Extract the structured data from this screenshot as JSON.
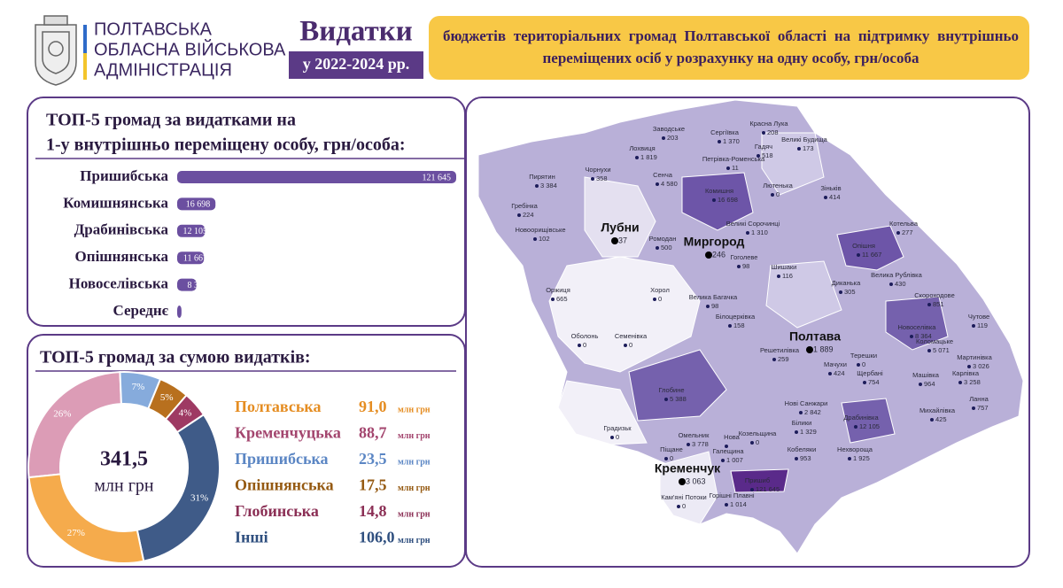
{
  "header": {
    "org": [
      "ПОЛТАВСЬКА",
      "ОБЛАСНА ВІЙСЬКОВА",
      "АДМІНІСТРАЦІЯ"
    ],
    "title": "Видатки",
    "period": "у 2022-2024 рр.",
    "subtitle": "бюджетів територіальних громад Полтавської області на підтримку внутрішньо переміщених осіб у розрахунку на одну особу, грн/особа"
  },
  "chart_data": [
    {
      "type": "bar",
      "orientation": "horizontal",
      "title": [
        "ТОП-5 громад за видатками на",
        "1-у внутрішньо переміщену особу, грн/особа:"
      ],
      "categories": [
        "Пришибська",
        "Комишнянська",
        "Драбинівська",
        "Опішнянська",
        "Новоселівська",
        "Середнє"
      ],
      "values": [
        121645,
        16698,
        12105,
        11667,
        8364,
        1882
      ],
      "value_labels": [
        "121 645",
        "16 698",
        "12 105",
        "11 667",
        "8 364",
        "1 882"
      ],
      "color": "#6b4fa0"
    },
    {
      "type": "pie",
      "title": "ТОП-5 громад за сумою видатків:",
      "total": 341.5,
      "total_label": "341,5",
      "unit": "млн грн",
      "categories": [
        "Полтавська",
        "Кременчуцька",
        "Пришибська",
        "Опішнянська",
        "Глобинська",
        "Інші"
      ],
      "values": [
        91.0,
        88.7,
        23.5,
        17.5,
        14.8,
        106.0
      ],
      "value_labels": [
        "91,0",
        "88,7",
        "23,5",
        "17,5",
        "14,8",
        "106,0"
      ],
      "shares": [
        27,
        26,
        7,
        5,
        4,
        31
      ],
      "share_labels": [
        "27%",
        "26%",
        "7%",
        "5%",
        "4%",
        "31%"
      ],
      "colors": [
        "#f5ab4c",
        "#dc9cb6",
        "#86abdc",
        "#b8701e",
        "#9e3a63",
        "#3f5b88"
      ],
      "label_colors": [
        "#e58d22",
        "#a3456e",
        "#5b86c4",
        "#955a12",
        "#8b2f55",
        "#2f4f7f"
      ]
    }
  ],
  "map": {
    "places": [
      {
        "name": "Заводське",
        "value": "203"
      },
      {
        "name": "Сергіївка",
        "value": "1 370"
      },
      {
        "name": "Красна Лука",
        "value": "208"
      },
      {
        "name": "Лохвиця",
        "value": "1 819"
      },
      {
        "name": "Гадяч",
        "value": "518"
      },
      {
        "name": "Великі Будища",
        "value": "173"
      },
      {
        "name": "Петрівка-Роменська",
        "value": "11"
      },
      {
        "name": "Пирятин",
        "value": "3 384"
      },
      {
        "name": "Чорнухи",
        "value": "358"
      },
      {
        "name": "Сенча",
        "value": "4 580"
      },
      {
        "name": "Комишня",
        "value": "16 698"
      },
      {
        "name": "Лютенька",
        "value": "0"
      },
      {
        "name": "Зіньків",
        "value": "414"
      },
      {
        "name": "Гребінка",
        "value": "224"
      },
      {
        "name": "Лубни",
        "value": "37"
      },
      {
        "name": "Великі Сорочинці",
        "value": "1 310"
      },
      {
        "name": "Новоорищівське",
        "value": "102"
      },
      {
        "name": "Ромодан",
        "value": "500"
      },
      {
        "name": "Миргород",
        "value": "246"
      },
      {
        "name": "Котельва",
        "value": "277"
      },
      {
        "name": "Опішня",
        "value": "11 667"
      },
      {
        "name": "Гоголеве",
        "value": "98"
      },
      {
        "name": "Шишаки",
        "value": "116"
      },
      {
        "name": "Велика Рублівка",
        "value": "430"
      },
      {
        "name": "Оржиця",
        "value": "665"
      },
      {
        "name": "Хорол",
        "value": "0"
      },
      {
        "name": "Велика Багачка",
        "value": "98"
      },
      {
        "name": "Диканька",
        "value": "305"
      },
      {
        "name": "Скороходове",
        "value": "851"
      },
      {
        "name": "Білоцерківка",
        "value": "158"
      },
      {
        "name": "Чутове",
        "value": "119"
      },
      {
        "name": "Оболонь",
        "value": "0"
      },
      {
        "name": "Семенівка",
        "value": "0"
      },
      {
        "name": "Полтава",
        "value": "1 889"
      },
      {
        "name": "Новоселівка",
        "value": "8 364"
      },
      {
        "name": "Коломацьке",
        "value": "5 071"
      },
      {
        "name": "Решетилівка",
        "value": "259"
      },
      {
        "name": "Терешки",
        "value": "0"
      },
      {
        "name": "Мартинівка",
        "value": "3 026"
      },
      {
        "name": "Мачухи",
        "value": "424"
      },
      {
        "name": "Щербані",
        "value": "754"
      },
      {
        "name": "Карлівка",
        "value": "3 258"
      },
      {
        "name": "Машівка",
        "value": "964"
      },
      {
        "name": "Глобине",
        "value": "5 388"
      },
      {
        "name": "Нові Санжари",
        "value": "2 842"
      },
      {
        "name": "Ланна",
        "value": "757"
      },
      {
        "name": "Драбинівка",
        "value": "12 105"
      },
      {
        "name": "Михайлівка",
        "value": "425"
      },
      {
        "name": "Білики",
        "value": "1 329"
      },
      {
        "name": "Градизьк",
        "value": "0"
      },
      {
        "name": "Омельник",
        "value": "3 778"
      },
      {
        "name": "Нова"
      },
      {
        "name": "Галещина",
        "value": "1 007"
      },
      {
        "name": "Козельщина",
        "value": "0"
      },
      {
        "name": "Кобеляки",
        "value": "953"
      },
      {
        "name": "Нехвороща",
        "value": "1 925"
      },
      {
        "name": "Піщане",
        "value": "0"
      },
      {
        "name": "Кременчук",
        "value": "3 063"
      },
      {
        "name": "Пришиб",
        "value": "121 645"
      },
      {
        "name": "Кам'яні Потоки",
        "value": "0"
      },
      {
        "name": "Горішні Плавні",
        "value": "1 014"
      }
    ]
  }
}
